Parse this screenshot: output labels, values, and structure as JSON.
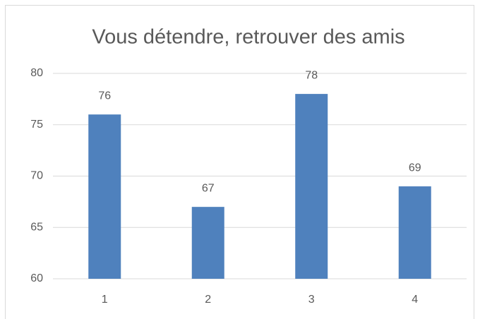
{
  "chart_data": {
    "type": "bar",
    "title": "Vous détendre, retrouver des amis",
    "categories": [
      "1",
      "2",
      "3",
      "4"
    ],
    "values": [
      76,
      67,
      78,
      69
    ],
    "color": "#4f81bd",
    "ylim": [
      60,
      80
    ],
    "yticks": [
      60,
      65,
      70,
      75,
      80
    ],
    "grid": true,
    "data_labels": true
  }
}
